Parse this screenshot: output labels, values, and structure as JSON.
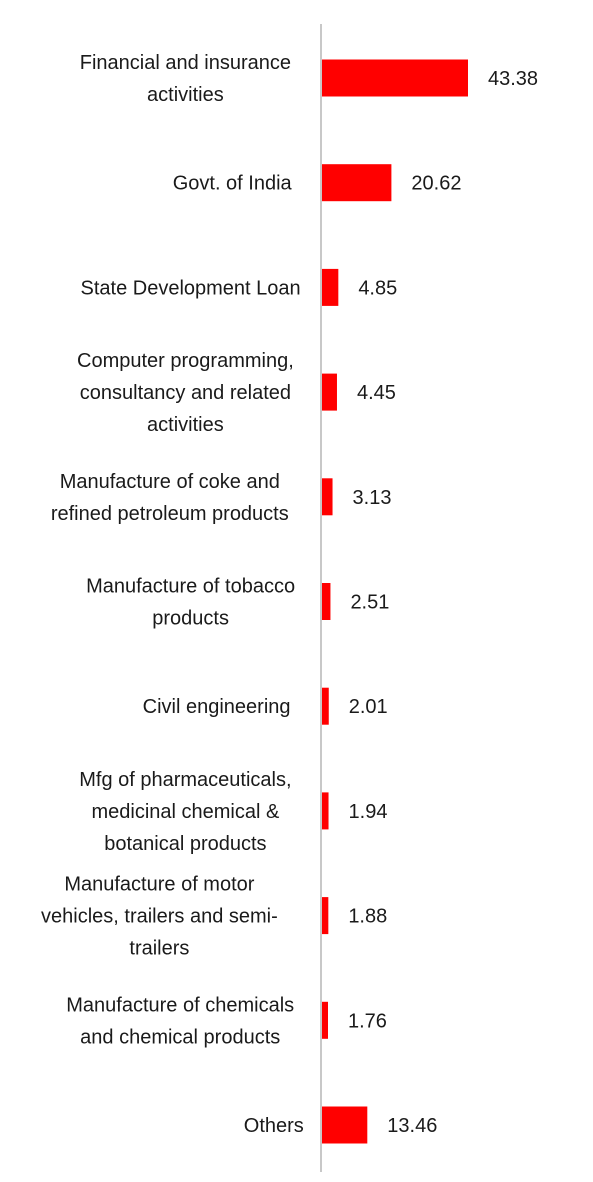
{
  "chart_data": {
    "type": "bar",
    "orientation": "horizontal",
    "categories": [
      "Financial and insurance activities",
      "Govt. of India",
      "State Development Loan",
      "Computer programming, consultancy and related activities",
      "Manufacture of coke and refined petroleum products",
      "Manufacture of tobacco products",
      "Civil engineering",
      "Mfg of pharmaceuticals, medicinal chemical & botanical products",
      "Manufacture of motor vehicles, trailers and semi-trailers",
      "Manufacture of chemicals and chemical products",
      "Others"
    ],
    "category_lines": [
      [
        "Financial and insurance",
        "activities"
      ],
      [
        "Govt. of India"
      ],
      [
        "State Development Loan"
      ],
      [
        "Computer programming,",
        "consultancy and related",
        "activities"
      ],
      [
        "Manufacture of coke and",
        "refined petroleum products"
      ],
      [
        "Manufacture of tobacco",
        "products"
      ],
      [
        "Civil engineering"
      ],
      [
        "Mfg of pharmaceuticals,",
        "medicinal chemical &",
        "botanical products"
      ],
      [
        "Manufacture of motor",
        "vehicles, trailers and semi-",
        "trailers"
      ],
      [
        "Manufacture of chemicals",
        "and chemical products"
      ],
      [
        "Others"
      ]
    ],
    "values": [
      43.38,
      20.62,
      4.85,
      4.45,
      3.13,
      2.51,
      2.01,
      1.94,
      1.88,
      1.76,
      13.46
    ],
    "value_labels": [
      "43.38",
      "20.62",
      "4.85",
      "4.45",
      "3.13",
      "2.51",
      "2.01",
      "1.94",
      "1.88",
      "1.76",
      "13.46"
    ],
    "title": "",
    "xlabel": "",
    "ylabel": "",
    "grid": false,
    "legend": "none",
    "colors": {
      "bar": "#ff0000",
      "axis": "#c8c8c8",
      "text": "#1a1a1a"
    }
  }
}
